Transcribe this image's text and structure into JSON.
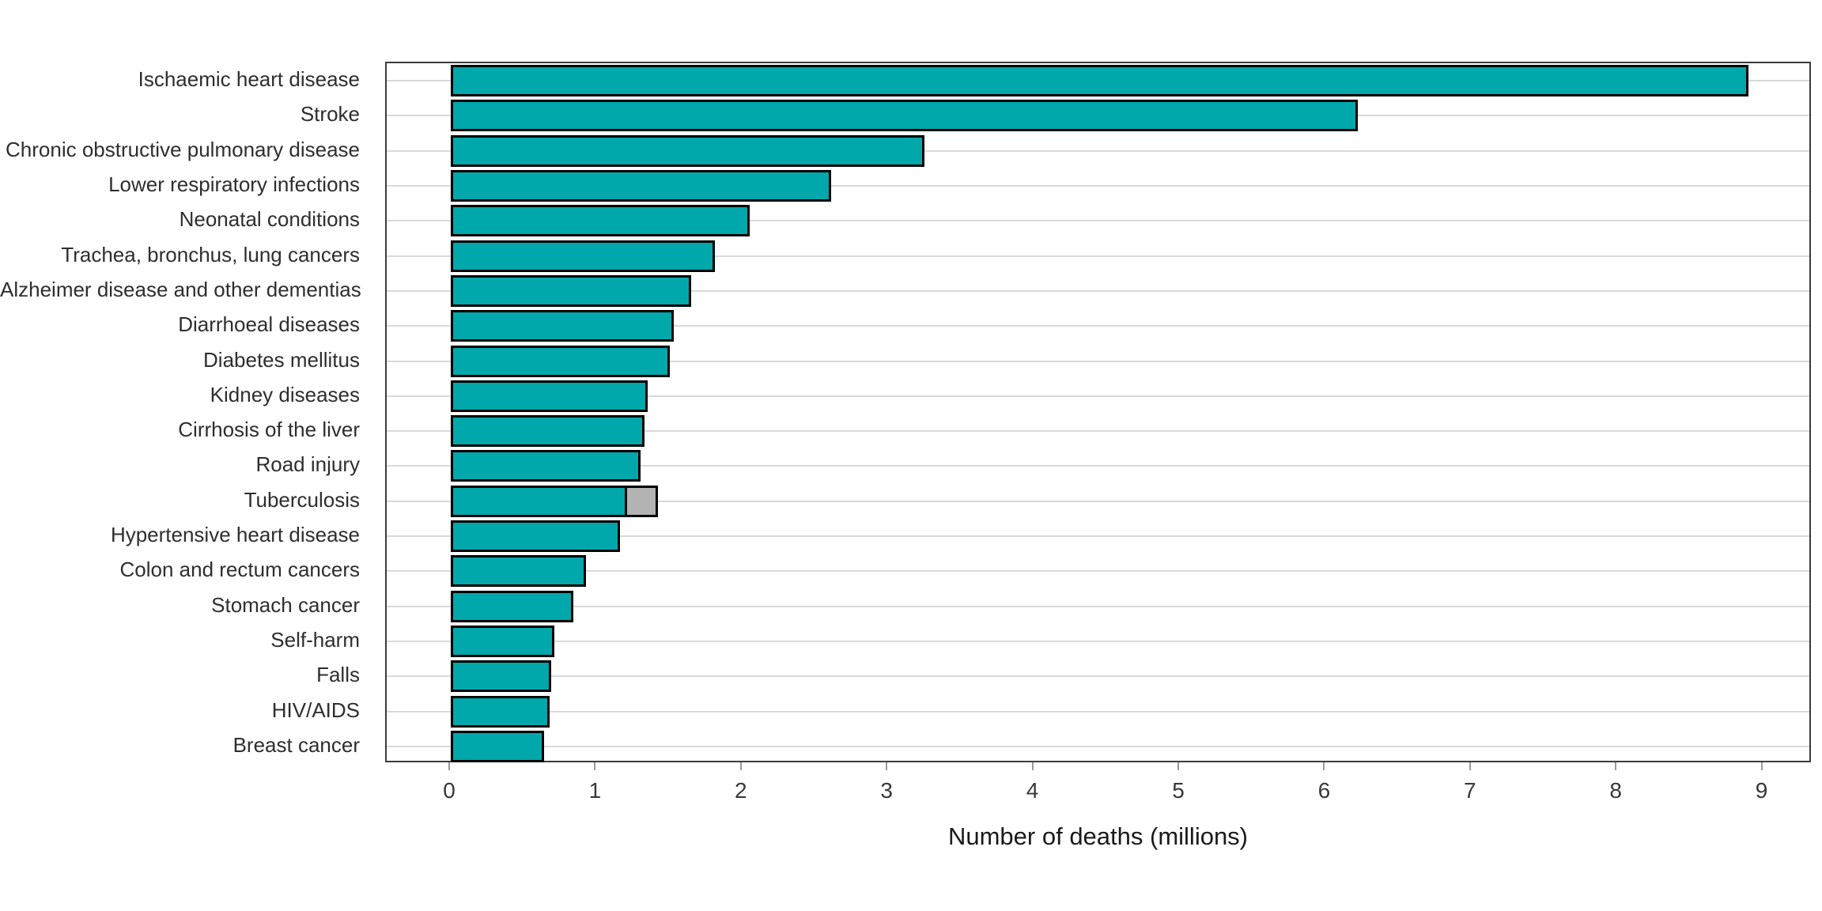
{
  "chart_data": {
    "type": "bar",
    "orientation": "horizontal",
    "title": "",
    "xlabel": "Number of deaths (millions)",
    "ylabel": "",
    "xlim": [
      -0.44,
      9.34
    ],
    "x_ticks": [
      0,
      1,
      2,
      3,
      4,
      5,
      6,
      7,
      8,
      9
    ],
    "grid": "horizontal category gridlines only",
    "legend": "none",
    "bar_fill_color": "#00a7ab",
    "bar_border_color": "#000000",
    "secondary_segment_color": "#b3b3b3",
    "gridline_color": "#d9d9d9",
    "panel_border_color": "#3c3c3c",
    "rows": [
      {
        "label": "Ischaemic heart disease",
        "value": 8.9
      },
      {
        "label": "Stroke",
        "value": 6.22
      },
      {
        "label": "Chronic obstructive pulmonary disease",
        "value": 3.25
      },
      {
        "label": "Lower respiratory infections",
        "value": 2.61
      },
      {
        "label": "Neonatal conditions",
        "value": 2.05
      },
      {
        "label": "Trachea, bronchus, lung cancers",
        "value": 1.81
      },
      {
        "label": "Alzheimer disease and other dementias",
        "value": 1.65
      },
      {
        "label": "Diarrhoeal diseases",
        "value": 1.53
      },
      {
        "label": "Diabetes mellitus",
        "value": 1.5
      },
      {
        "label": "Kidney diseases",
        "value": 1.35
      },
      {
        "label": "Cirrhosis of the liver",
        "value": 1.33
      },
      {
        "label": "Road injury",
        "value": 1.3
      },
      {
        "label": "Tuberculosis",
        "value": 1.21,
        "extra_value": 0.21,
        "extra_color": "#b3b3b3"
      },
      {
        "label": "Hypertensive heart disease",
        "value": 1.16
      },
      {
        "label": "Colon and rectum cancers",
        "value": 0.93
      },
      {
        "label": "Stomach cancer",
        "value": 0.84
      },
      {
        "label": "Self-harm",
        "value": 0.71
      },
      {
        "label": "Falls",
        "value": 0.69
      },
      {
        "label": "HIV/AIDS",
        "value": 0.68
      },
      {
        "label": "Breast cancer",
        "value": 0.64
      }
    ]
  }
}
